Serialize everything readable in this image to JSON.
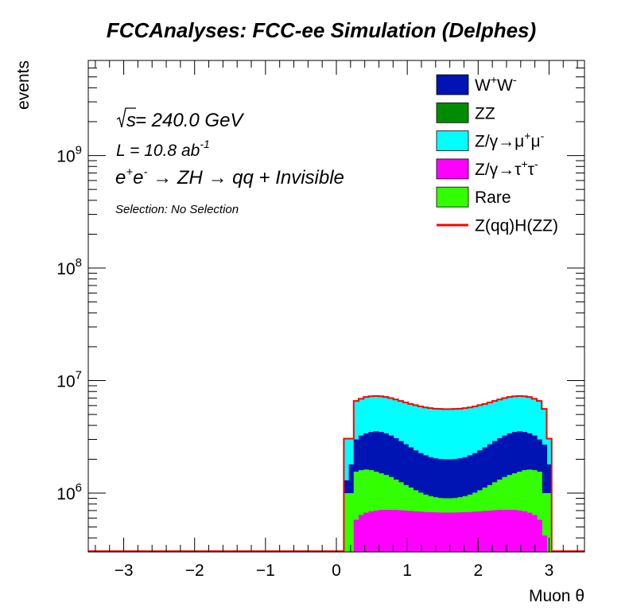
{
  "chart_data": {
    "type": "histogram-stacked",
    "title": "FCCAnalyses: FCC-ee Simulation (Delphes)",
    "xlabel": "Muon θ",
    "ylabel": "events",
    "xlim": [
      -3.5,
      3.5
    ],
    "ylim": [
      300000,
      7000000000
    ],
    "log_y": true,
    "x_ticks": [
      -3,
      -2,
      -1,
      0,
      1,
      2,
      3
    ],
    "x_tick_labels": [
      "−3",
      "−2",
      "−1",
      "0",
      "1",
      "2",
      "3"
    ],
    "y_ticks": [
      {
        "value": 1000000,
        "base": "10",
        "exp": "6"
      },
      {
        "value": 10000000,
        "base": "10",
        "exp": "7"
      },
      {
        "value": 100000000,
        "base": "10",
        "exp": "8"
      },
      {
        "value": 1000000000,
        "base": "10",
        "exp": "9"
      }
    ],
    "annotations": {
      "sqrt_s": {
        "sqrt": "s",
        "rest": " = 240.0 GeV"
      },
      "lumi": {
        "main": "L = 10.8 ab",
        "sup": "-1"
      },
      "process": {
        "e1": "e",
        "e1sup": "+",
        "e2": "e",
        "e2sup": "-",
        "arrow1": " → ZH ",
        "arrow2": "→ qq + Invisible"
      },
      "selection": "Selection: No Selection"
    },
    "legend_position": "top-right",
    "legend": [
      {
        "key": "ww",
        "label_html": "W<sup>+</sup>W<sup>-</sup>",
        "parts": [
          "W",
          "+",
          "W",
          "-"
        ],
        "color": "#0014b4",
        "style": "fill"
      },
      {
        "key": "zz",
        "label": "ZZ",
        "color": "#008c00",
        "style": "fill"
      },
      {
        "key": "zmumu",
        "parts": [
          "Z/γ→μ",
          "+",
          "μ",
          "-"
        ],
        "color": "#00ffff",
        "style": "fill"
      },
      {
        "key": "ztautau",
        "parts": [
          "Z/γ→τ",
          "+",
          "τ",
          "-"
        ],
        "color": "#ff00ff",
        "style": "fill"
      },
      {
        "key": "rare",
        "label": "Rare",
        "color": "#33ff00",
        "style": "fill"
      },
      {
        "key": "signal",
        "label": "Z(qq)H(ZZ)",
        "color": "#ff0000",
        "style": "line"
      }
    ],
    "bin_width": 0.0698,
    "bins_x_start": [
      0.105,
      0.175,
      0.244,
      0.314,
      0.384,
      0.454,
      0.524,
      0.593,
      0.663,
      0.733,
      0.803,
      0.873,
      0.942,
      1.012,
      1.082,
      1.152,
      1.222,
      1.291,
      1.361,
      1.431,
      1.501,
      1.571,
      1.64,
      1.71,
      1.78,
      1.85,
      1.92,
      1.989,
      2.059,
      2.129,
      2.199,
      2.269,
      2.338,
      2.408,
      2.478,
      2.548,
      2.618,
      2.687,
      2.757,
      2.827,
      2.897,
      2.967
    ],
    "series_cumulative": [
      {
        "name": "Z/γ→τ+τ-",
        "key": "ztautau",
        "values": [
          300000,
          300000,
          580000,
          640000,
          670000,
          690000,
          700000,
          710000,
          710000,
          710000,
          710000,
          705000,
          700000,
          695000,
          690000,
          685000,
          680000,
          678000,
          675000,
          673000,
          672000,
          672000,
          673000,
          675000,
          678000,
          680000,
          685000,
          690000,
          695000,
          700000,
          705000,
          710000,
          710000,
          710000,
          710000,
          700000,
          690000,
          670000,
          640000,
          580000,
          420000,
          300000
        ]
      },
      {
        "name": "Rare",
        "key": "rare",
        "values": [
          1000000,
          1000000,
          1550000,
          1600000,
          1620000,
          1600000,
          1550000,
          1500000,
          1450000,
          1390000,
          1320000,
          1250000,
          1180000,
          1120000,
          1060000,
          1010000,
          970000,
          940000,
          920000,
          905000,
          900000,
          900000,
          905000,
          920000,
          940000,
          970000,
          1010000,
          1060000,
          1120000,
          1180000,
          1250000,
          1320000,
          1390000,
          1450000,
          1500000,
          1550000,
          1600000,
          1620000,
          1600000,
          1550000,
          1000000,
          1000000
        ]
      },
      {
        "name": "W+W-",
        "key": "ww",
        "values": [
          1300000,
          1800000,
          3000000,
          3250000,
          3400000,
          3500000,
          3550000,
          3500000,
          3400000,
          3250000,
          3080000,
          2900000,
          2720000,
          2550000,
          2400000,
          2270000,
          2170000,
          2090000,
          2040000,
          2010000,
          2000000,
          2000000,
          2010000,
          2040000,
          2090000,
          2170000,
          2270000,
          2400000,
          2550000,
          2720000,
          2900000,
          3080000,
          3250000,
          3400000,
          3500000,
          3550000,
          3500000,
          3400000,
          3250000,
          3000000,
          2700000,
          1800000
        ]
      },
      {
        "name": "Z/γ→μ+μ-",
        "key": "zmumu",
        "values": [
          3050000,
          3050000,
          6600000,
          6900000,
          7150000,
          7250000,
          7300000,
          7250000,
          7150000,
          7000000,
          6800000,
          6600000,
          6400000,
          6200000,
          6050000,
          5900000,
          5780000,
          5700000,
          5630000,
          5600000,
          5580000,
          5580000,
          5600000,
          5630000,
          5700000,
          5780000,
          5900000,
          6050000,
          6200000,
          6400000,
          6600000,
          6800000,
          7000000,
          7150000,
          7250000,
          7300000,
          7250000,
          7150000,
          6900000,
          6600000,
          5600000,
          3050000
        ]
      }
    ]
  }
}
